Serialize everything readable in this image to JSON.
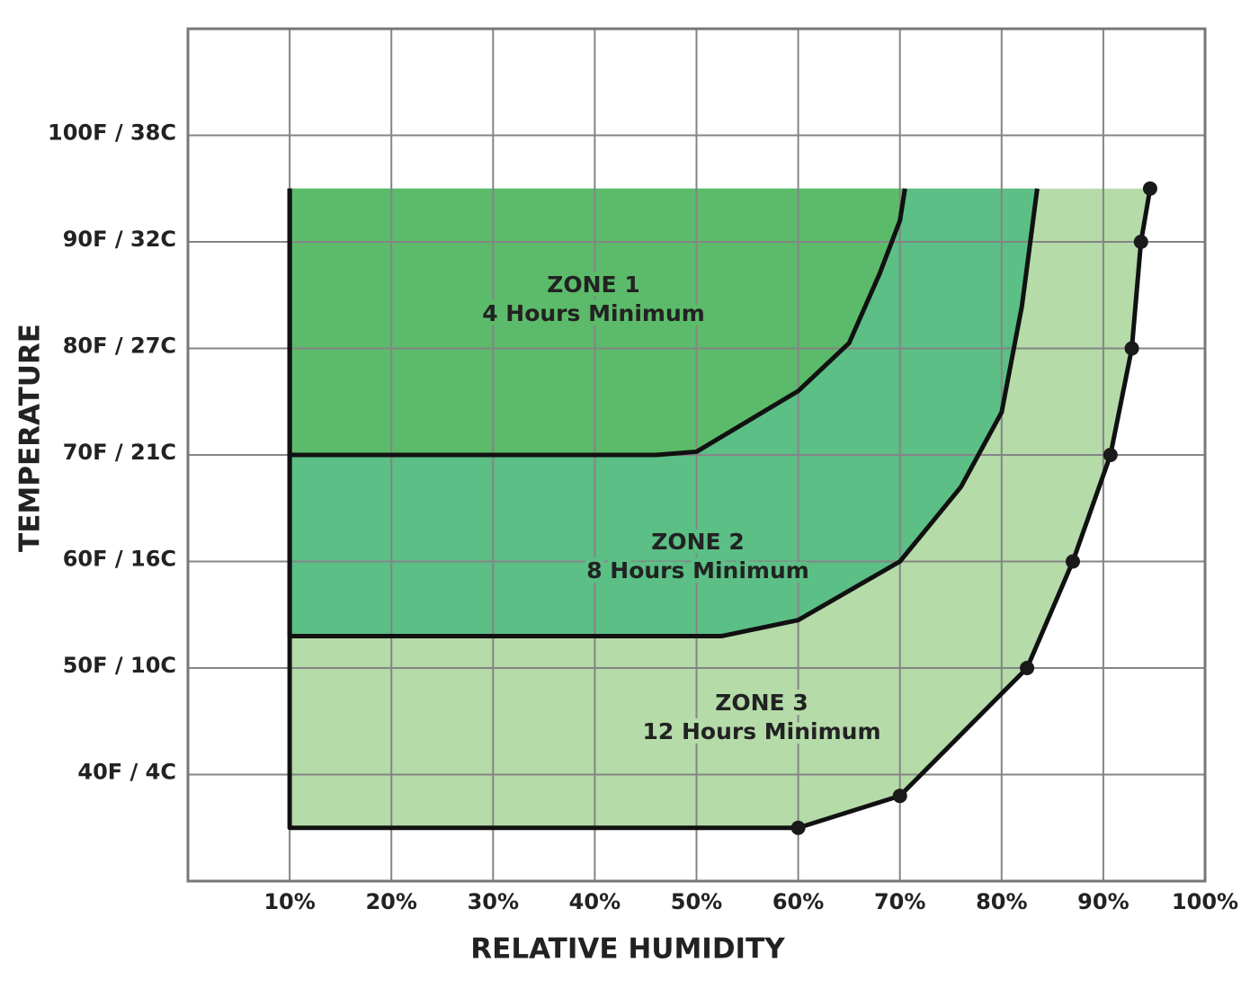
{
  "chart_data": {
    "type": "zone",
    "x_label": "RELATIVE HUMIDITY",
    "y_label": "TEMPERATURE",
    "xlim": [
      0,
      100
    ],
    "ylim": [
      30,
      110
    ],
    "xticks": [
      {
        "value": 10,
        "label": "10%"
      },
      {
        "value": 20,
        "label": "20%"
      },
      {
        "value": 30,
        "label": "30%"
      },
      {
        "value": 40,
        "label": "40%"
      },
      {
        "value": 50,
        "label": "50%"
      },
      {
        "value": 60,
        "label": "60%"
      },
      {
        "value": 70,
        "label": "70%"
      },
      {
        "value": 80,
        "label": "80%"
      },
      {
        "value": 90,
        "label": "90%"
      },
      {
        "value": 100,
        "label": "100%"
      }
    ],
    "yticks": [
      {
        "value": 40,
        "label": "40F / 4C"
      },
      {
        "value": 50,
        "label": "50F / 10C"
      },
      {
        "value": 60,
        "label": "60F / 16C"
      },
      {
        "value": 70,
        "label": "70F / 21C"
      },
      {
        "value": 80,
        "label": "80F / 27C"
      },
      {
        "value": 90,
        "label": "90F / 32C"
      },
      {
        "value": 100,
        "label": "100F / 38C"
      }
    ],
    "grid": true,
    "series": [
      {
        "name": "ZONE 3",
        "note": "12 Hours Minimum",
        "color": "#b4dba8",
        "x": [
          10,
          10,
          60,
          70,
          82.5,
          87,
          90.7,
          92.8,
          93.7,
          94.6
        ],
        "values": [
          95,
          35,
          35,
          38,
          50,
          60,
          70,
          80,
          90,
          95
        ]
      },
      {
        "name": "ZONE 2",
        "note": "8 Hours Minimum",
        "color": "#5bbf86",
        "x": [
          10,
          10,
          52.5,
          60,
          70,
          76,
          80,
          82,
          83.5
        ],
        "values": [
          95,
          53,
          53,
          54.5,
          60,
          67,
          74,
          84,
          95
        ]
      },
      {
        "name": "ZONE 1",
        "note": "4 Hours Minimum",
        "color": "#5cbb6a",
        "x": [
          10,
          10,
          46,
          50,
          60,
          65,
          68,
          70,
          70.5
        ],
        "values": [
          95,
          70,
          70,
          70.3,
          76,
          80.5,
          87,
          92,
          95
        ]
      }
    ],
    "points": {
      "color": "#1a1a1a",
      "x": [
        60,
        70,
        82.5,
        87,
        90.7,
        92.8,
        93.7,
        94.6
      ],
      "values": [
        35,
        38,
        50,
        60,
        70,
        80,
        90,
        95
      ]
    }
  }
}
